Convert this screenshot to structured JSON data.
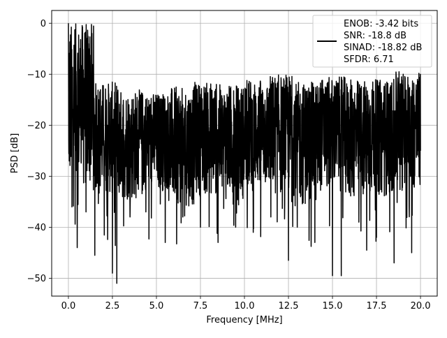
{
  "chart_data": {
    "type": "line",
    "xlabel": "Frequency [MHz]",
    "ylabel": "PSD [dB]",
    "xlim": [
      -0.95,
      20.95
    ],
    "ylim": [
      -53.5,
      2.5
    ],
    "xticks": [
      0.0,
      2.5,
      5.0,
      7.5,
      10.0,
      12.5,
      15.0,
      17.5,
      20.0
    ],
    "xtick_labels": [
      "0.0",
      "2.5",
      "5.0",
      "7.5",
      "10.0",
      "12.5",
      "15.0",
      "17.5",
      "20.0"
    ],
    "yticks": [
      0,
      -10,
      -20,
      -30,
      -40,
      -50
    ],
    "ytick_labels": [
      "0",
      "−10",
      "−20",
      "−30",
      "−40",
      "−50"
    ],
    "grid": true,
    "legend_position": "top-right",
    "series": [
      {
        "name": "ENOB: -3.42 bits\nSNR: -18.8 dB\nSINAD: -18.82 dB\nSFDR: 6.71",
        "color": "#000000",
        "x": [
          0.0,
          0.02,
          0.05,
          0.1,
          0.2,
          0.3,
          0.5,
          0.7,
          1.0,
          1.2,
          1.5,
          2.0,
          2.5,
          2.6,
          2.75,
          3.0,
          3.5,
          4.0,
          4.4,
          5.0,
          5.5,
          6.0,
          6.5,
          6.8,
          7.5,
          8.0,
          8.5,
          9.0,
          9.5,
          10.0,
          10.5,
          11.0,
          11.5,
          12.0,
          12.5,
          12.6,
          13.0,
          13.5,
          14.0,
          14.5,
          15.0,
          15.2,
          15.5,
          16.0,
          16.5,
          17.0,
          17.5,
          17.9,
          18.5,
          19.0,
          19.5,
          20.0
        ],
        "y": [
          0.0,
          -23.0,
          -27.0,
          -21.0,
          -36.0,
          -24.0,
          -44.0,
          -22.0,
          -37.0,
          -24.0,
          -45.5,
          -23.0,
          -49.0,
          -22.0,
          -51.0,
          -24.0,
          -38.0,
          -22.0,
          -37.0,
          -24.0,
          -43.0,
          -22.0,
          -38.0,
          -24.0,
          -40.0,
          -22.0,
          -43.0,
          -24.0,
          -40.0,
          -22.0,
          -41.0,
          -24.0,
          -38.0,
          -22.0,
          -46.5,
          -24.0,
          -40.0,
          -22.0,
          -43.0,
          -24.0,
          -49.5,
          -22.0,
          -49.5,
          -24.0,
          -39.0,
          -22.0,
          -42.0,
          -24.0,
          -47.0,
          -22.0,
          -45.0,
          -25.0
        ],
        "peak_upper": [
          0.0,
          -11.5,
          -13.0,
          -13.5,
          -12.5,
          -11.5,
          -12.0,
          -11.0,
          -10.0,
          -11.5,
          -10.5,
          -11.0,
          -11.0,
          -9.5,
          -10.0
        ],
        "noise_floor_trough": [
          -33.0,
          -34.0,
          -35.0,
          -33.0,
          -36.0,
          -34.0,
          -35.0,
          -33.0,
          -34.0,
          -36.0,
          -33.0,
          -35.0,
          -34.0,
          -33.0,
          -35.0
        ]
      }
    ]
  }
}
